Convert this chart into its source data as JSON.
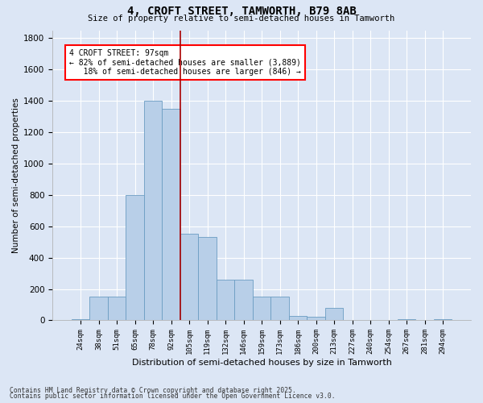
{
  "title1": "4, CROFT STREET, TAMWORTH, B79 8AB",
  "title2": "Size of property relative to semi-detached houses in Tamworth",
  "xlabel": "Distribution of semi-detached houses by size in Tamworth",
  "ylabel": "Number of semi-detached properties",
  "categories": [
    "24sqm",
    "38sqm",
    "51sqm",
    "65sqm",
    "78sqm",
    "92sqm",
    "105sqm",
    "119sqm",
    "132sqm",
    "146sqm",
    "159sqm",
    "173sqm",
    "186sqm",
    "200sqm",
    "213sqm",
    "227sqm",
    "240sqm",
    "254sqm",
    "267sqm",
    "281sqm",
    "294sqm"
  ],
  "values": [
    10,
    150,
    150,
    800,
    1400,
    1350,
    550,
    530,
    260,
    260,
    150,
    150,
    30,
    25,
    80,
    0,
    0,
    0,
    5,
    0,
    5
  ],
  "bar_color": "#b8cfe8",
  "bar_edge_color": "#6b9dc2",
  "vline_color": "#aa0000",
  "annotation_text": "4 CROFT STREET: 97sqm\n← 82% of semi-detached houses are smaller (3,889)\n   18% of semi-detached houses are larger (846) →",
  "ylim": [
    0,
    1850
  ],
  "yticks": [
    0,
    200,
    400,
    600,
    800,
    1000,
    1200,
    1400,
    1600,
    1800
  ],
  "footnote1": "Contains HM Land Registry data © Crown copyright and database right 2025.",
  "footnote2": "Contains public sector information licensed under the Open Government Licence v3.0.",
  "background_color": "#dce6f5",
  "plot_bg_color": "#dce6f5",
  "grid_color": "#ffffff"
}
